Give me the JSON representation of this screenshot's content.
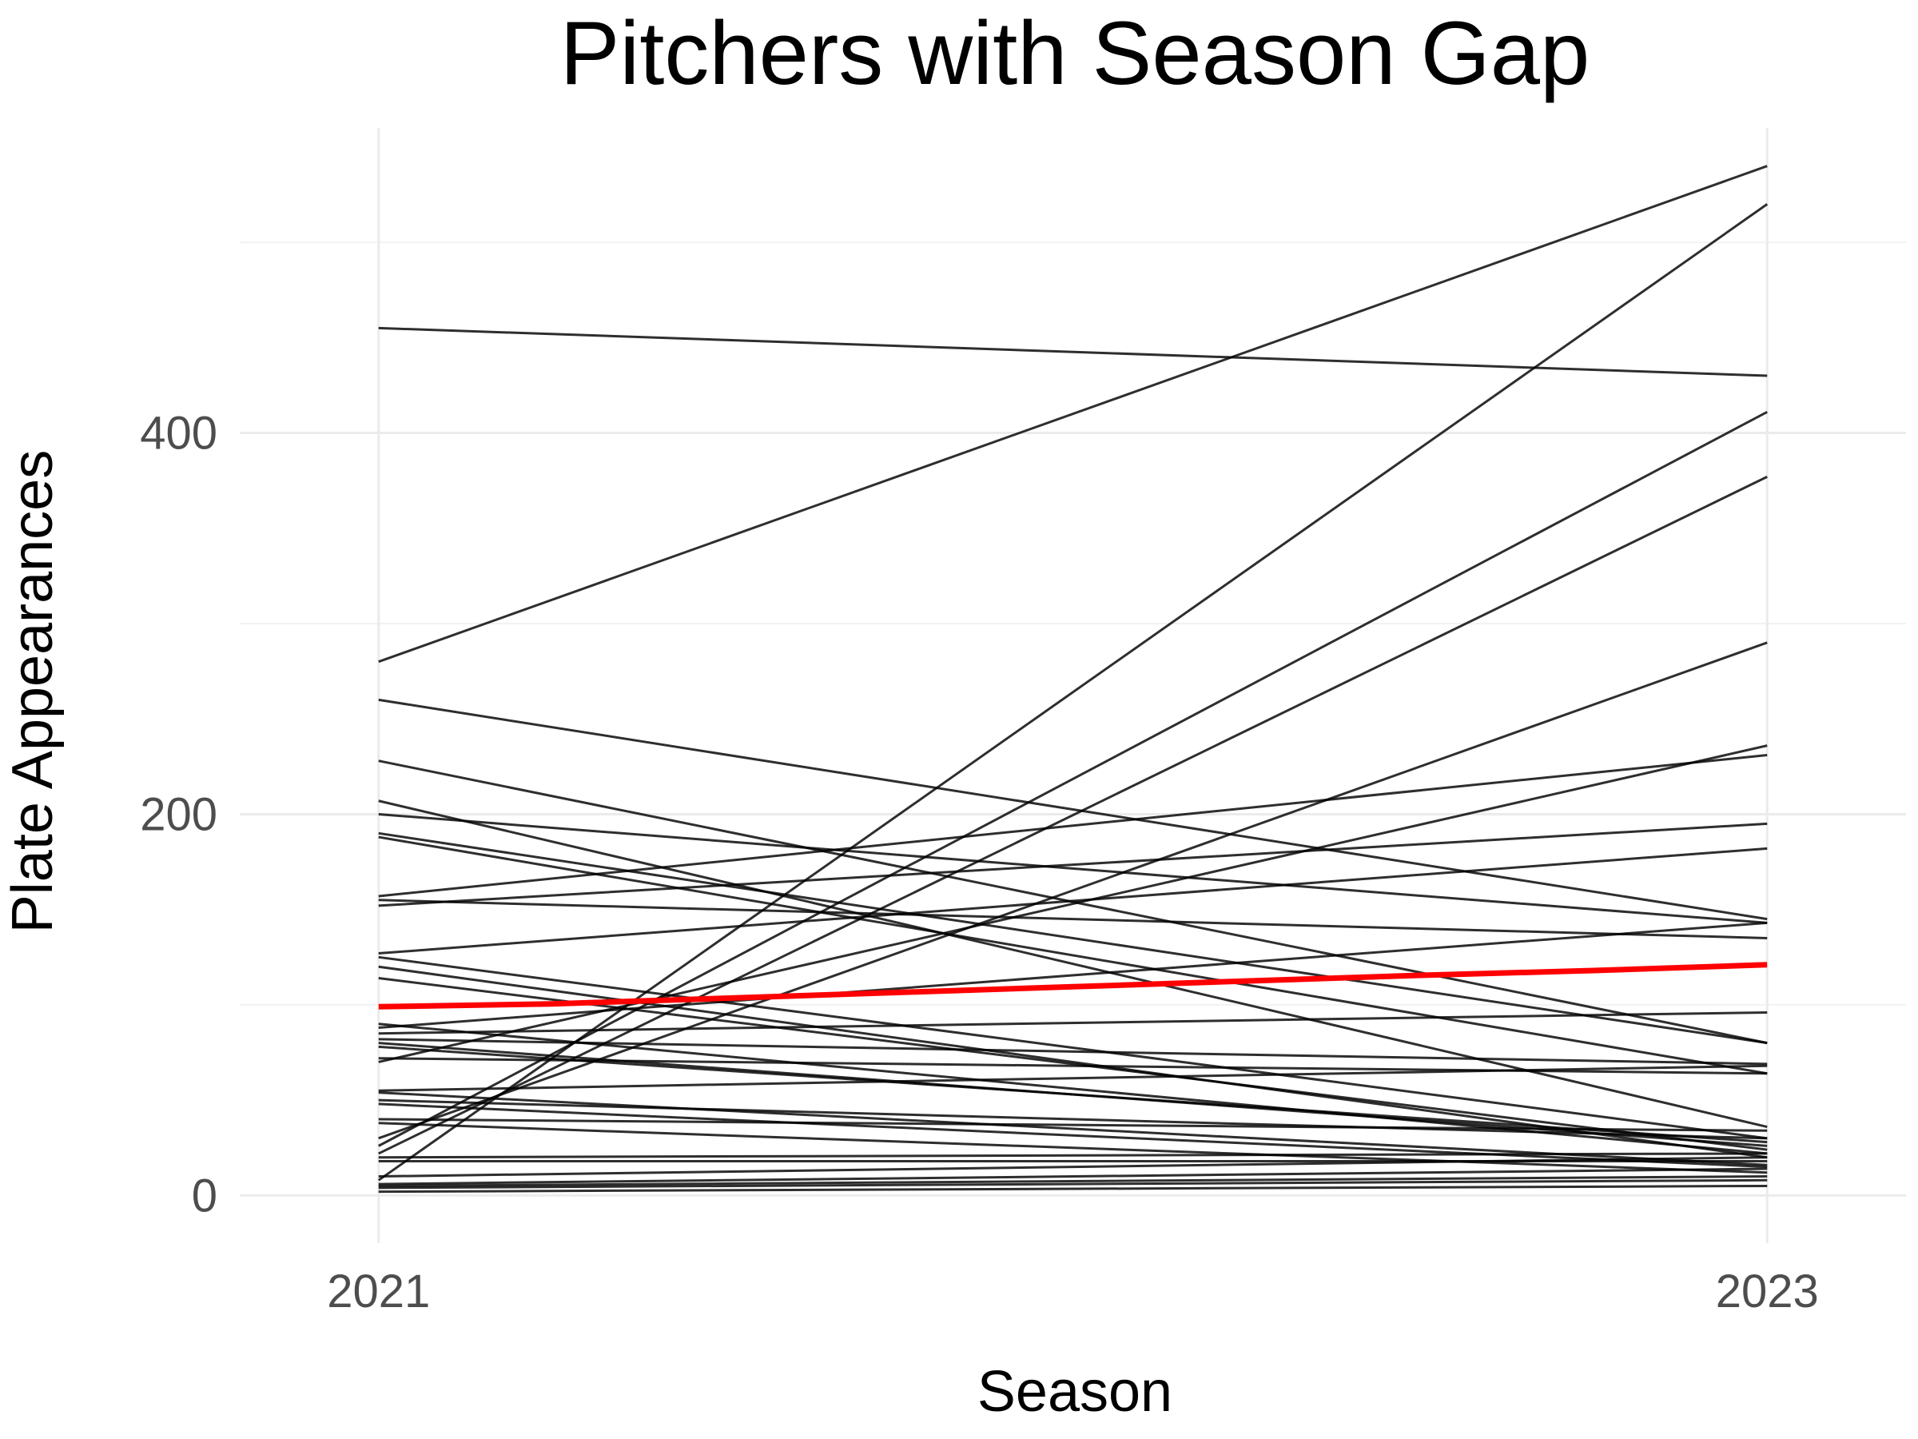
{
  "chart_data": {
    "type": "line",
    "title": "Pitchers with Season Gap",
    "xlabel": "Season",
    "ylabel": "Plate Appearances",
    "x": [
      2021,
      2023
    ],
    "x_ticks": [
      "2021",
      "2023"
    ],
    "y_ticks": [
      "0",
      "200",
      "400"
    ],
    "y_tick_values": [
      0,
      200,
      400
    ],
    "y_minor_values": [
      100,
      300,
      500
    ],
    "xlim": [
      2020.8,
      2023.2
    ],
    "ylim": [
      -25,
      560
    ],
    "grid": true,
    "legend": "none",
    "colors": {
      "line": "#000000",
      "trend": "#ff0000",
      "grid": "#ebebeb"
    },
    "series": [
      {
        "values": [
          455,
          430
        ]
      },
      {
        "values": [
          280,
          540
        ]
      },
      {
        "values": [
          260,
          145
        ]
      },
      {
        "values": [
          228,
          80
        ]
      },
      {
        "values": [
          207,
          36
        ]
      },
      {
        "values": [
          200,
          143
        ]
      },
      {
        "values": [
          190,
          80
        ]
      },
      {
        "values": [
          188,
          64
        ]
      },
      {
        "values": [
          157,
          231
        ]
      },
      {
        "values": [
          155,
          135
        ]
      },
      {
        "values": [
          152,
          195
        ]
      },
      {
        "values": [
          127,
          182
        ]
      },
      {
        "values": [
          125,
          30
        ]
      },
      {
        "values": [
          120,
          20
        ]
      },
      {
        "values": [
          114,
          24
        ]
      },
      {
        "values": [
          90,
          22
        ]
      },
      {
        "values": [
          88,
          143
        ]
      },
      {
        "values": [
          85,
          96
        ]
      },
      {
        "values": [
          82,
          69
        ]
      },
      {
        "values": [
          80,
          26
        ]
      },
      {
        "values": [
          78,
          28
        ]
      },
      {
        "values": [
          72,
          64
        ]
      },
      {
        "values": [
          70,
          236
        ]
      },
      {
        "values": [
          55,
          68
        ]
      },
      {
        "values": [
          54,
          16
        ]
      },
      {
        "values": [
          50,
          30
        ]
      },
      {
        "values": [
          48,
          15
        ]
      },
      {
        "values": [
          40,
          34
        ]
      },
      {
        "values": [
          38,
          12
        ]
      },
      {
        "values": [
          30,
          290
        ]
      },
      {
        "values": [
          26,
          411
        ]
      },
      {
        "values": [
          22,
          377
        ]
      },
      {
        "values": [
          20,
          22
        ]
      },
      {
        "values": [
          18,
          18
        ]
      },
      {
        "values": [
          10,
          20
        ]
      },
      {
        "values": [
          8,
          520
        ]
      },
      {
        "values": [
          6,
          14
        ]
      },
      {
        "values": [
          5,
          10
        ]
      },
      {
        "values": [
          4,
          8
        ]
      },
      {
        "values": [
          2,
          5
        ]
      }
    ],
    "trend": [
      {
        "x": 2021.0,
        "y": 99
      },
      {
        "x": 2021.25,
        "y": 100.5
      },
      {
        "x": 2021.5,
        "y": 103.5
      },
      {
        "x": 2021.75,
        "y": 106.5
      },
      {
        "x": 2022.0,
        "y": 109.5
      },
      {
        "x": 2022.25,
        "y": 112.5
      },
      {
        "x": 2022.5,
        "y": 115.5
      },
      {
        "x": 2022.75,
        "y": 118
      },
      {
        "x": 2023.0,
        "y": 121
      }
    ]
  }
}
